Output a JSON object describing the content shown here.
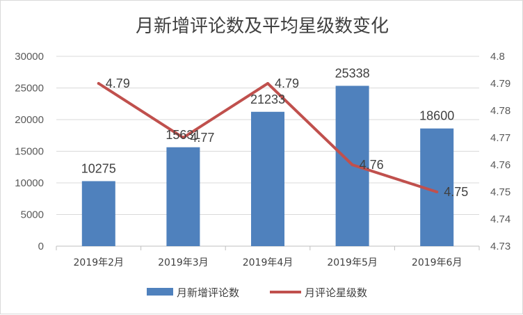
{
  "chart_data": {
    "type": "bar",
    "title": "月新增评论数及平均星级数变化",
    "categories": [
      "2019年2月",
      "2019年3月",
      "2019年4月",
      "2019年5月",
      "2019年6月"
    ],
    "series": [
      {
        "name": "月新增评论数",
        "type": "bar",
        "axis": "left",
        "color": "#4f81bd",
        "values": [
          10275,
          15631,
          21233,
          25338,
          18600
        ],
        "labels": [
          "10275",
          "15631",
          "21233",
          "25338",
          "18600"
        ]
      },
      {
        "name": "月评论星级数",
        "type": "line",
        "axis": "right",
        "color": "#c0504d",
        "values": [
          4.79,
          4.77,
          4.79,
          4.76,
          4.75
        ],
        "labels": [
          "4.79",
          "4.77",
          "4.79",
          "4.76",
          "4.75"
        ]
      }
    ],
    "left_axis": {
      "ylim": [
        0,
        30000
      ],
      "ticks": [
        0,
        5000,
        10000,
        15000,
        20000,
        25000,
        30000
      ],
      "tick_labels": [
        "0",
        "5000",
        "10000",
        "15000",
        "20000",
        "25000",
        "30000"
      ]
    },
    "right_axis": {
      "ylim": [
        4.73,
        4.8
      ],
      "ticks": [
        4.73,
        4.74,
        4.75,
        4.76,
        4.77,
        4.78,
        4.79,
        4.8
      ],
      "tick_labels": [
        "4.73",
        "4.74",
        "4.75",
        "4.76",
        "4.77",
        "4.78",
        "4.79",
        "4.8"
      ]
    },
    "grid": true,
    "legend_position": "bottom"
  }
}
